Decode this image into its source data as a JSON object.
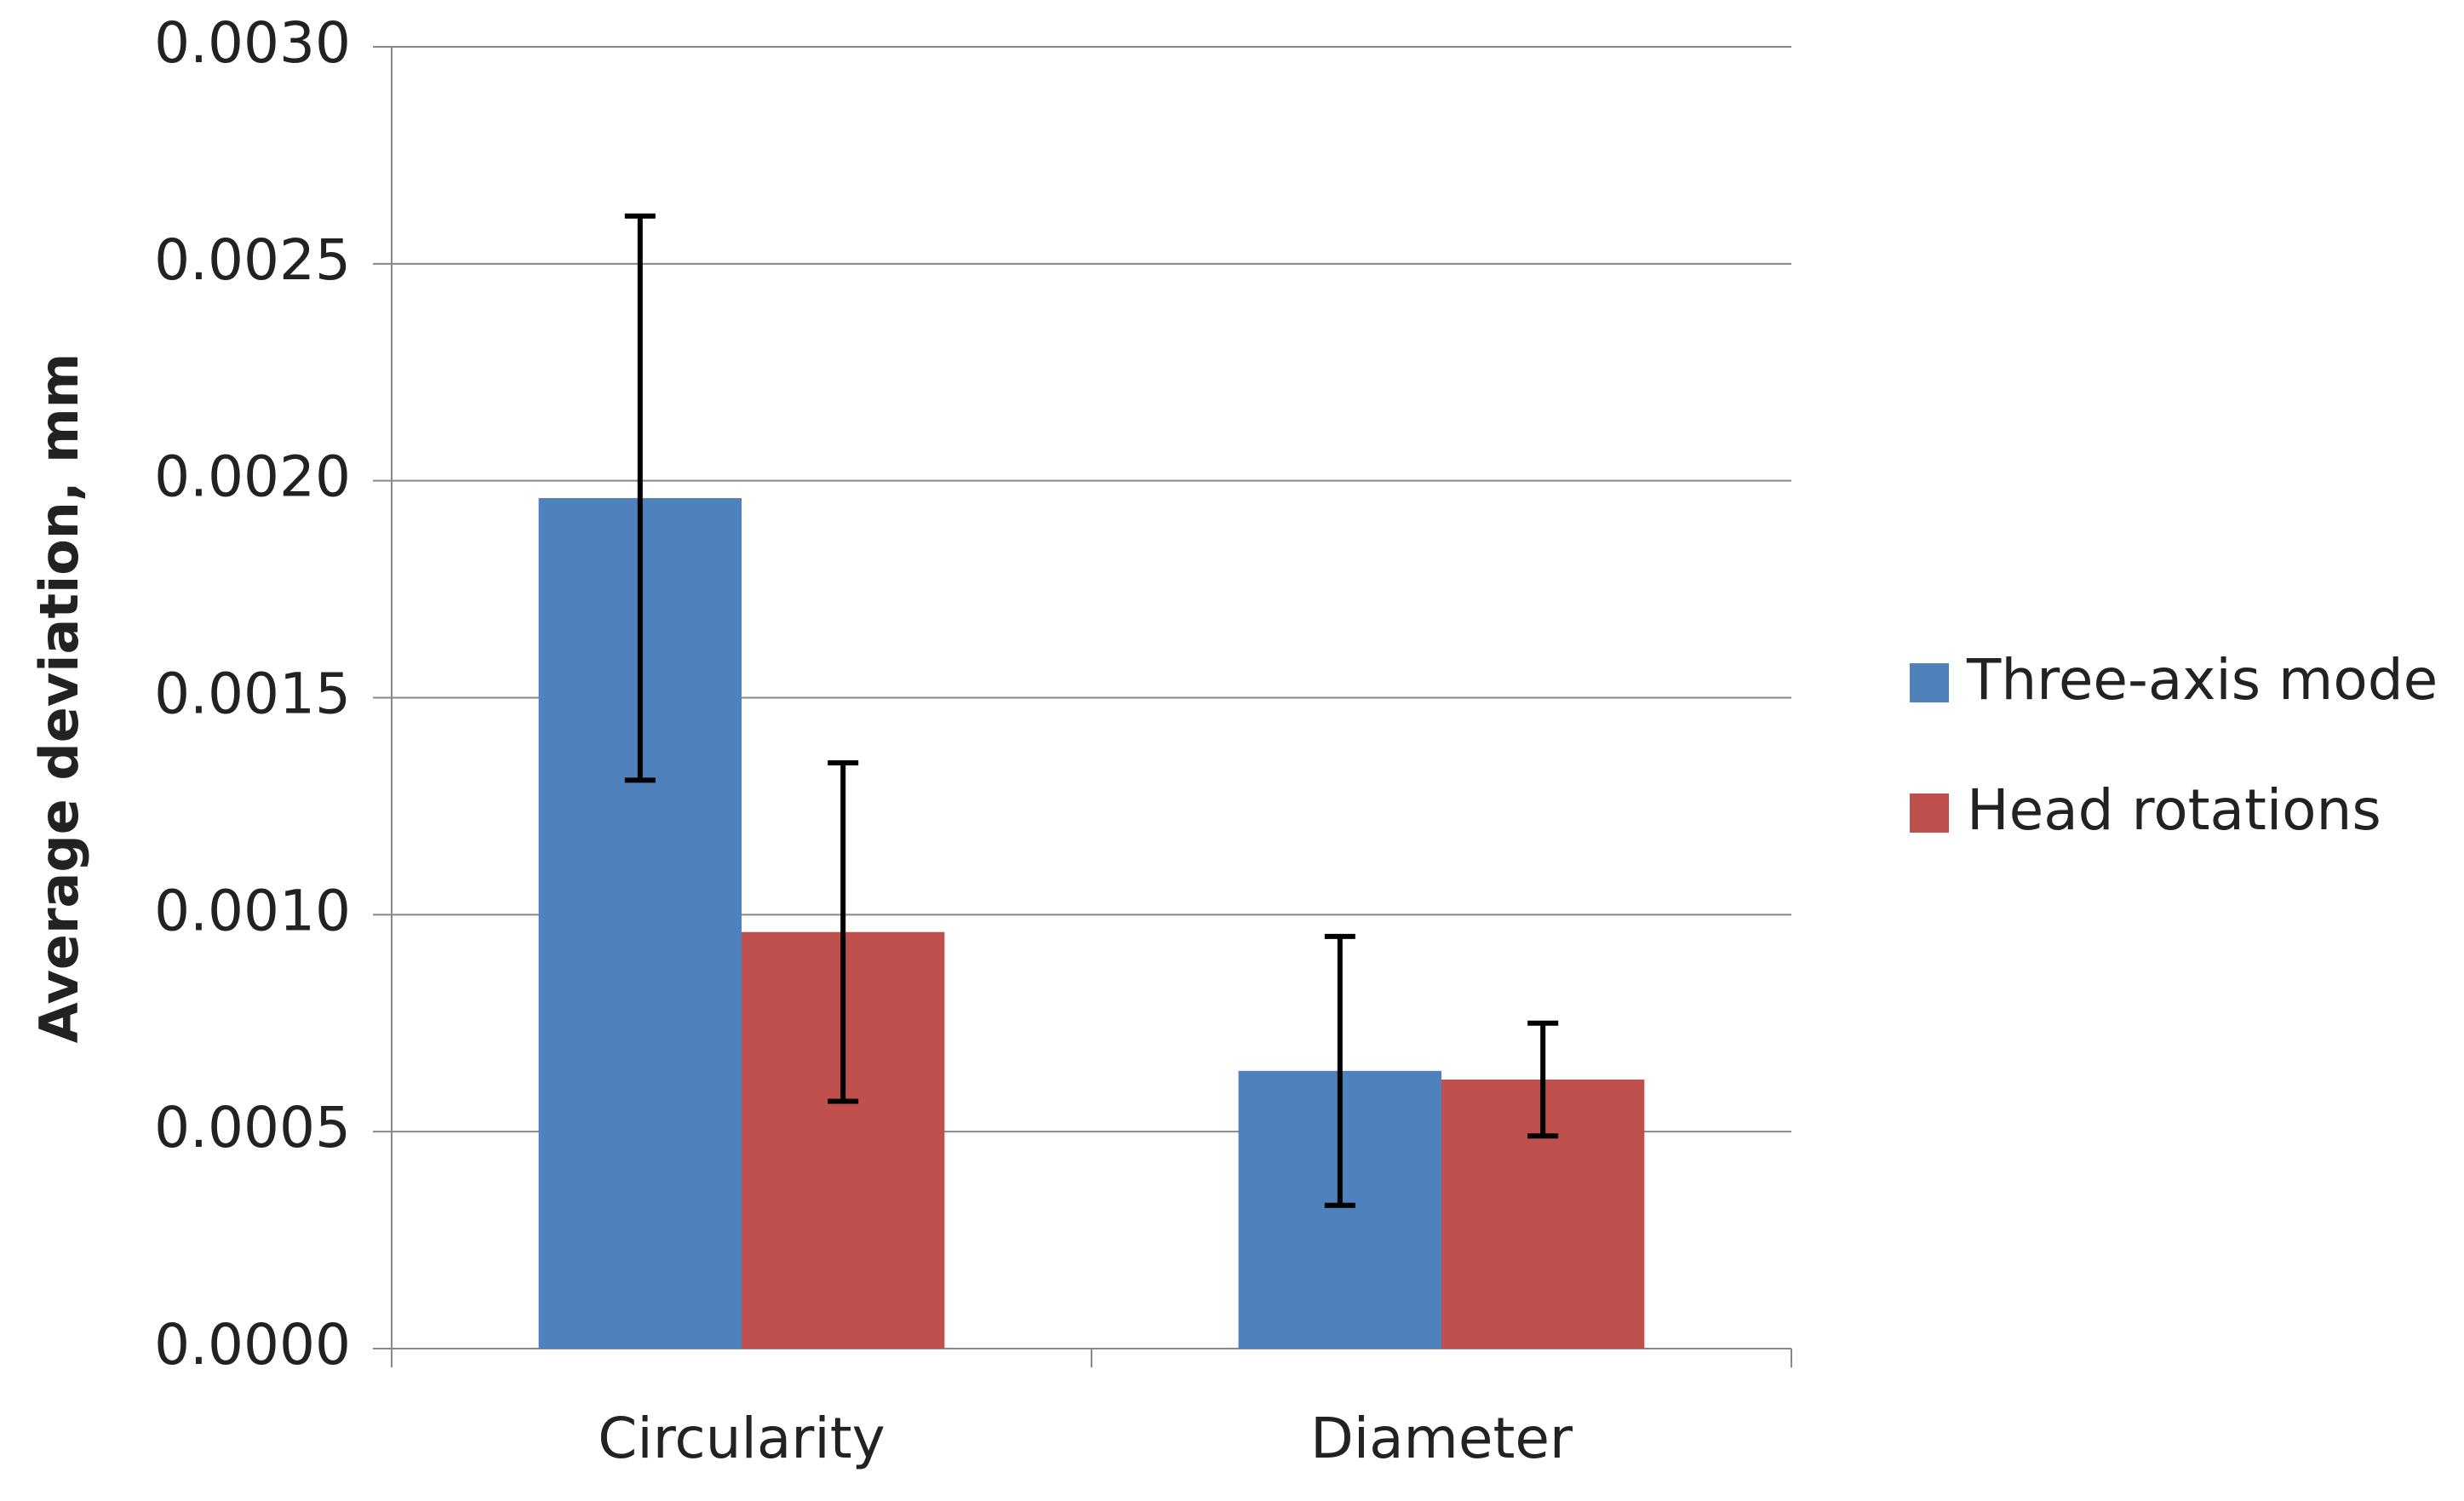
{
  "chart_data": {
    "type": "bar",
    "y_label": "Average deviation, mm",
    "categories": [
      "Circularity",
      "Diameter"
    ],
    "series": [
      {
        "name": "Three-axis mode",
        "color": "#4f81bd",
        "values": [
          0.00196,
          0.00064
        ],
        "errors": [
          0.00065,
          0.00031
        ]
      },
      {
        "name": "Head rotations",
        "color": "#c0504d",
        "values": [
          0.00096,
          0.00062
        ],
        "errors": [
          0.00039,
          0.00013
        ]
      }
    ],
    "ylim": [
      0,
      0.003
    ],
    "yticks": [
      {
        "value": 0,
        "label": "0.0000"
      },
      {
        "value": 0.0005,
        "label": "0.0005"
      },
      {
        "value": 0.001,
        "label": "0.0010"
      },
      {
        "value": 0.0015,
        "label": "0.0015"
      },
      {
        "value": 0.002,
        "label": "0.0020"
      },
      {
        "value": 0.0025,
        "label": "0.0025"
      },
      {
        "value": 0.003,
        "label": "0.0030"
      }
    ],
    "grid": true,
    "legend": "right"
  }
}
